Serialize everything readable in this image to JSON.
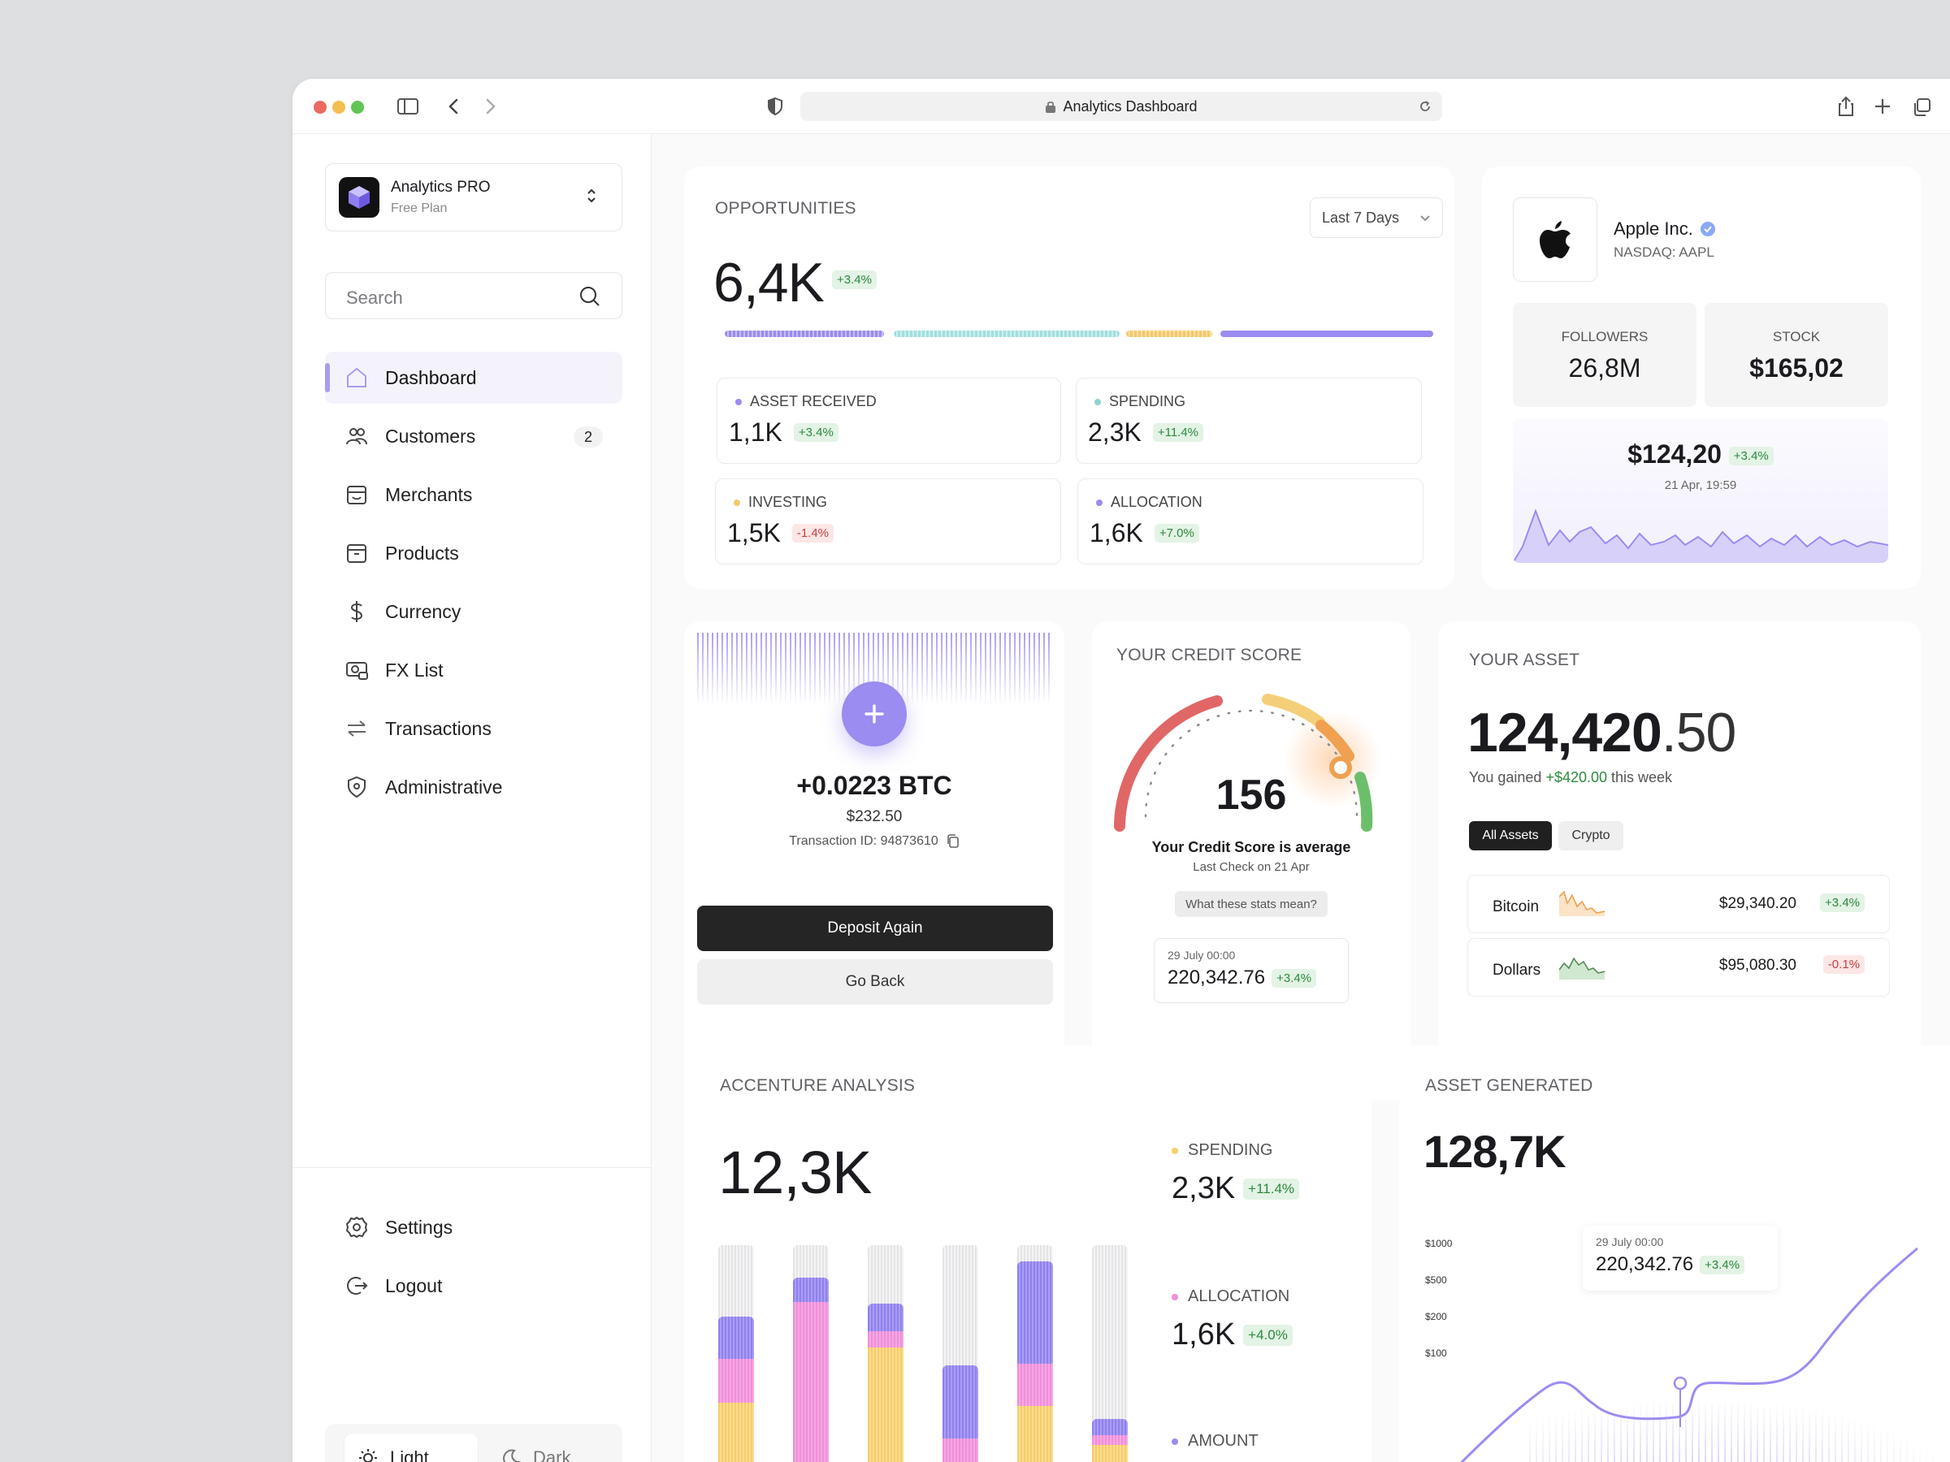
{
  "browser": {
    "url_title": "Analytics Dashboard",
    "dots": [
      "#ec6a5f",
      "#f4bf4f",
      "#61c554"
    ]
  },
  "sidebar": {
    "brand_name": "Analytics PRO",
    "brand_plan": "Free Plan",
    "search_placeholder": "Search",
    "items": [
      {
        "label": "Dashboard",
        "icon": "home-icon"
      },
      {
        "label": "Customers",
        "icon": "users-icon",
        "badge": "2"
      },
      {
        "label": "Merchants",
        "icon": "store-icon"
      },
      {
        "label": "Products",
        "icon": "box-icon"
      },
      {
        "label": "Currency",
        "icon": "dollar-icon"
      },
      {
        "label": "FX List",
        "icon": "money-icon"
      },
      {
        "label": "Transactions",
        "icon": "arrows-icon"
      },
      {
        "label": "Administrative",
        "icon": "shield-icon"
      }
    ],
    "settings_label": "Settings",
    "logout_label": "Logout",
    "theme_light": "Light",
    "theme_dark": "Dark"
  },
  "opportunities": {
    "title": "OPPORTUNITIES",
    "period": "Last 7 Days",
    "value": "6,4K",
    "change": "+3.4%",
    "stats": [
      {
        "label": "ASSET RECEIVED",
        "value": "1,1K",
        "change": "+3.4%",
        "dot": "#9b8cf2"
      },
      {
        "label": "SPENDING",
        "value": "2,3K",
        "change": "+11.4%",
        "dot": "#8fd3d1"
      },
      {
        "label": "INVESTING",
        "value": "1,5K",
        "change": "-1.4%",
        "dot": "#f5c86b"
      },
      {
        "label": "ALLOCATION",
        "value": "1,6K",
        "change": "+7.0%",
        "dot": "#9b8cf2"
      }
    ]
  },
  "stock": {
    "company": "Apple Inc.",
    "ticker": "NASDAQ: AAPL",
    "followers_label": "FOLLOWERS",
    "followers": "26,8M",
    "stock_label": "STOCK",
    "stock_value": "$165,02",
    "price": "$124,20",
    "price_change": "+3.4%",
    "price_time": "21 Apr, 19:59"
  },
  "deposit": {
    "amount": "+0.0223 BTC",
    "usd": "$232.50",
    "transaction": "Transaction ID: 94873610",
    "deposit_again": "Deposit Again",
    "go_back": "Go Back"
  },
  "credit": {
    "title": "YOUR CREDIT SCORE",
    "score": "156",
    "status": "Your Credit Score is average",
    "last_check": "Last Check on 21 Apr",
    "help": "What these stats mean?",
    "footer_date": "29 July 00:00",
    "footer_value": "220,342.76",
    "footer_change": "+3.4%"
  },
  "asset": {
    "title": "YOUR ASSET",
    "value_main": "124,420",
    "value_decimal": ".50",
    "gain_prefix": "You gained ",
    "gain_value": "+$420.00",
    "gain_suffix": " this week",
    "tab_all": "All Assets",
    "tab_crypto": "Crypto",
    "rows": [
      {
        "name": "Bitcoin",
        "value": "$29,340.20",
        "change": "+3.4%",
        "positive": true
      },
      {
        "name": "Dollars",
        "value": "$95,080.30",
        "change": "-0.1%",
        "positive": false
      }
    ]
  },
  "accenture": {
    "title": "ACCENTURE ANALYSIS",
    "value": "12,3K",
    "legend": [
      {
        "label": "SPENDING",
        "value": "2,3K",
        "change": "+11.4%",
        "dot": "#f5d06e"
      },
      {
        "label": "ALLOCATION",
        "value": "1,6K",
        "change": "+4.0%",
        "dot": "#f08fd8"
      },
      {
        "label": "AMOUNT",
        "dot": "#9b8cf2"
      }
    ]
  },
  "asset_generated": {
    "title": "ASSET GENERATED",
    "value": "128,7K",
    "y_ticks": [
      "$1000",
      "$500",
      "$200",
      "$100"
    ],
    "tooltip_date": "29 July 00:00",
    "tooltip_value": "220,342.76",
    "tooltip_change": "+3.4%"
  }
}
